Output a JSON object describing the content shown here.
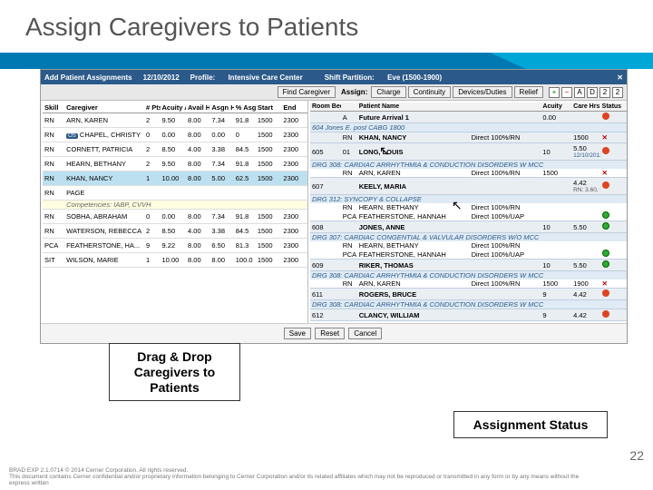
{
  "slide": {
    "title": "Assign Caregivers to Patients",
    "page_number": "22",
    "footer1": "BRAD EXP 2.1.0714   © 2014 Cerner Corporation. All rights reserved.",
    "footer2": "This document contains Cerner confidential and/or proprietary information belonging to Cerner Corporation and/or its related affiliates which may not be reproduced or transmitted in any form or by any means without the express written"
  },
  "callouts": {
    "drag": "Drag & Drop Caregivers to Patients",
    "status": "Assignment Status"
  },
  "app": {
    "header": {
      "title": "Add Patient Assignments",
      "date": "12/10/2012",
      "profile_label": "Profile:",
      "profile": "Intensive Care Center",
      "partition_label": "Shift Partition:",
      "partition": "Eve (1500-1900)"
    },
    "toolbar": {
      "find": "Find Caregiver",
      "assign_label": "Assign:",
      "charge": "Charge",
      "continuity": "Continuity",
      "devices": "Devices/Duties",
      "relief": "Relief"
    },
    "left": {
      "columns": [
        "Skill",
        "Caregiver",
        "# Pts",
        "Acuity Avg",
        "Avail Hrs",
        "Asgn Hrs",
        "% Asgn",
        "Start",
        "End"
      ],
      "rows": [
        {
          "skill": "RN",
          "name": "ARN, KAREN",
          "pts": "2",
          "acu": "9.50",
          "avail": "8.00",
          "asgn": "7.34",
          "pct": "91.8",
          "start": "1500",
          "end": "2300"
        },
        {
          "skill": "RN",
          "name": "CHAPEL, CHRISTY",
          "pts": "0",
          "acu": "0.00",
          "avail": "8.00",
          "asgn": "0.00",
          "pct": "0",
          "start": "1500",
          "end": "2300",
          "badge": "OS"
        },
        {
          "skill": "RN",
          "name": "CORNETT, PATRICIA",
          "pts": "2",
          "acu": "8.50",
          "avail": "4.00",
          "asgn": "3.38",
          "pct": "84.5",
          "start": "1500",
          "end": "2300"
        },
        {
          "skill": "RN",
          "name": "HEARN, BETHANY",
          "pts": "2",
          "acu": "9.50",
          "avail": "8.00",
          "asgn": "7.34",
          "pct": "91.8",
          "start": "1500",
          "end": "2300"
        },
        {
          "skill": "RN",
          "name": "KHAN, NANCY",
          "pts": "1",
          "acu": "10.00",
          "avail": "8.00",
          "asgn": "5.00",
          "pct": "62.5",
          "start": "1500",
          "end": "2300"
        },
        {
          "skill": "RN",
          "name": "PAGE",
          "pts": "",
          "acu": "",
          "avail": "",
          "asgn": "",
          "pct": "",
          "start": "",
          "end": "",
          "comp": "Competencies: IABP, CVVH"
        },
        {
          "skill": "RN",
          "name": "SOBHA, ABRAHAM",
          "pts": "0",
          "acu": "0.00",
          "avail": "8.00",
          "asgn": "7.34",
          "pct": "91.8",
          "start": "1500",
          "end": "2300"
        },
        {
          "skill": "RN",
          "name": "WATERSON, REBECCA",
          "pts": "2",
          "acu": "8.50",
          "avail": "4.00",
          "asgn": "3.38",
          "pct": "84.5",
          "start": "1500",
          "end": "2300"
        },
        {
          "skill": "PCA",
          "name": "FEATHERSTONE, HA...",
          "pts": "9",
          "acu": "9.22",
          "avail": "8.00",
          "asgn": "6.50",
          "pct": "81.3",
          "start": "1500",
          "end": "2300"
        },
        {
          "skill": "SIT",
          "name": "WILSON, MARIE",
          "pts": "1",
          "acu": "10.00",
          "avail": "8.00",
          "asgn": "8.00",
          "pct": "100.0",
          "start": "1500",
          "end": "2300"
        }
      ]
    },
    "right": {
      "columns": [
        "Room Bed",
        "",
        "Patient Name",
        "",
        "Acuity",
        "Care Hrs",
        "Status"
      ],
      "groups": [
        {
          "room": "",
          "bed": "A",
          "name": "Future Arrival 1",
          "score": "",
          "acuity": "0.00",
          "hrs": "",
          "status": "red",
          "drg": "604 Jones E. post CABG 1800",
          "care": []
        },
        {
          "room": "",
          "bed": "RN",
          "name": "KHAN, NANCY",
          "right": "Direct 100%/RN",
          "acuity": "",
          "hrs": "1500",
          "xhrs": "1900",
          "status": "x",
          "drg": "",
          "care": []
        },
        {
          "room": "605",
          "bed": "01",
          "name": "LONG, LOUIS",
          "acuity": "10",
          "hrs": "5.50",
          "status": "red",
          "drg": "DRG 308: CARDIAC ARRHYTHMIA & CONDUCTION DISORDERS W MCC",
          "date": "12/10/2012 1800",
          "care": [
            {
              "role": "RN",
              "who": "ARN, KAREN",
              "mode": "Direct 100%/RN",
              "h1": "1500",
              "h2": "",
              "mark": "x"
            }
          ]
        },
        {
          "room": "607",
          "bed": "",
          "name": "KEELY, MARIA",
          "acuity": "",
          "hrs": "4.42",
          "status": "red",
          "drg": "DRG 312: SYNCOPY & COLLAPSE",
          "extra": "RN: 3.60, PCA: 0.82",
          "care": [
            {
              "role": "RN",
              "who": "HEARN, BETHANY",
              "mode": "Direct 100%/RN",
              "h1": "",
              "h2": "",
              "mark": ""
            },
            {
              "role": "PCA",
              "who": "FEATHERSTONE, HANNAH",
              "mode": "Direct 100%/UAP",
              "h1": "",
              "h2": "",
              "mark": "green"
            }
          ]
        },
        {
          "room": "608",
          "bed": "",
          "name": "JONES, ANNE",
          "acuity": "10",
          "hrs": "5.50",
          "status": "green",
          "drg": "DRG 307: CARDIAC CONGENTIAL & VALVULAR DISORDERS W/O MCC",
          "care": [
            {
              "role": "RN",
              "who": "HEARN, BETHANY",
              "mode": "Direct 100%/RN",
              "h1": "",
              "h2": "",
              "mark": ""
            },
            {
              "role": "PCA",
              "who": "FEATHERSTONE, HANNAH",
              "mode": "Direct 100%/UAP",
              "h1": "",
              "h2": "",
              "mark": "green"
            }
          ]
        },
        {
          "room": "609",
          "bed": "",
          "name": "RIKER, THOMAS",
          "acuity": "10",
          "hrs": "5.50",
          "status": "green",
          "drg": "DRG 308: CARDIAC ARRHYTHMIA & CONDUCTION DISORDERS W MCC",
          "care": [
            {
              "role": "RN",
              "who": "ARN, KAREN",
              "mode": "Direct 100%/RN",
              "h1": "1500",
              "h2": "1900",
              "mark": "x"
            }
          ]
        },
        {
          "room": "611",
          "bed": "",
          "name": "ROGERS, BRUCE",
          "acuity": "9",
          "hrs": "4.42",
          "status": "red",
          "drg": "DRG 308: CARDIAC ARRHYTHMIA & CONDUCTION DISORDERS W MCC",
          "care": []
        },
        {
          "room": "612",
          "bed": "",
          "name": "CLANCY, WILLIAM",
          "acuity": "9",
          "hrs": "4.42",
          "status": "red",
          "drg": "",
          "care": []
        }
      ]
    },
    "footer_btns": {
      "save": "Save",
      "reset": "Reset",
      "cancel": "Cancel"
    }
  }
}
